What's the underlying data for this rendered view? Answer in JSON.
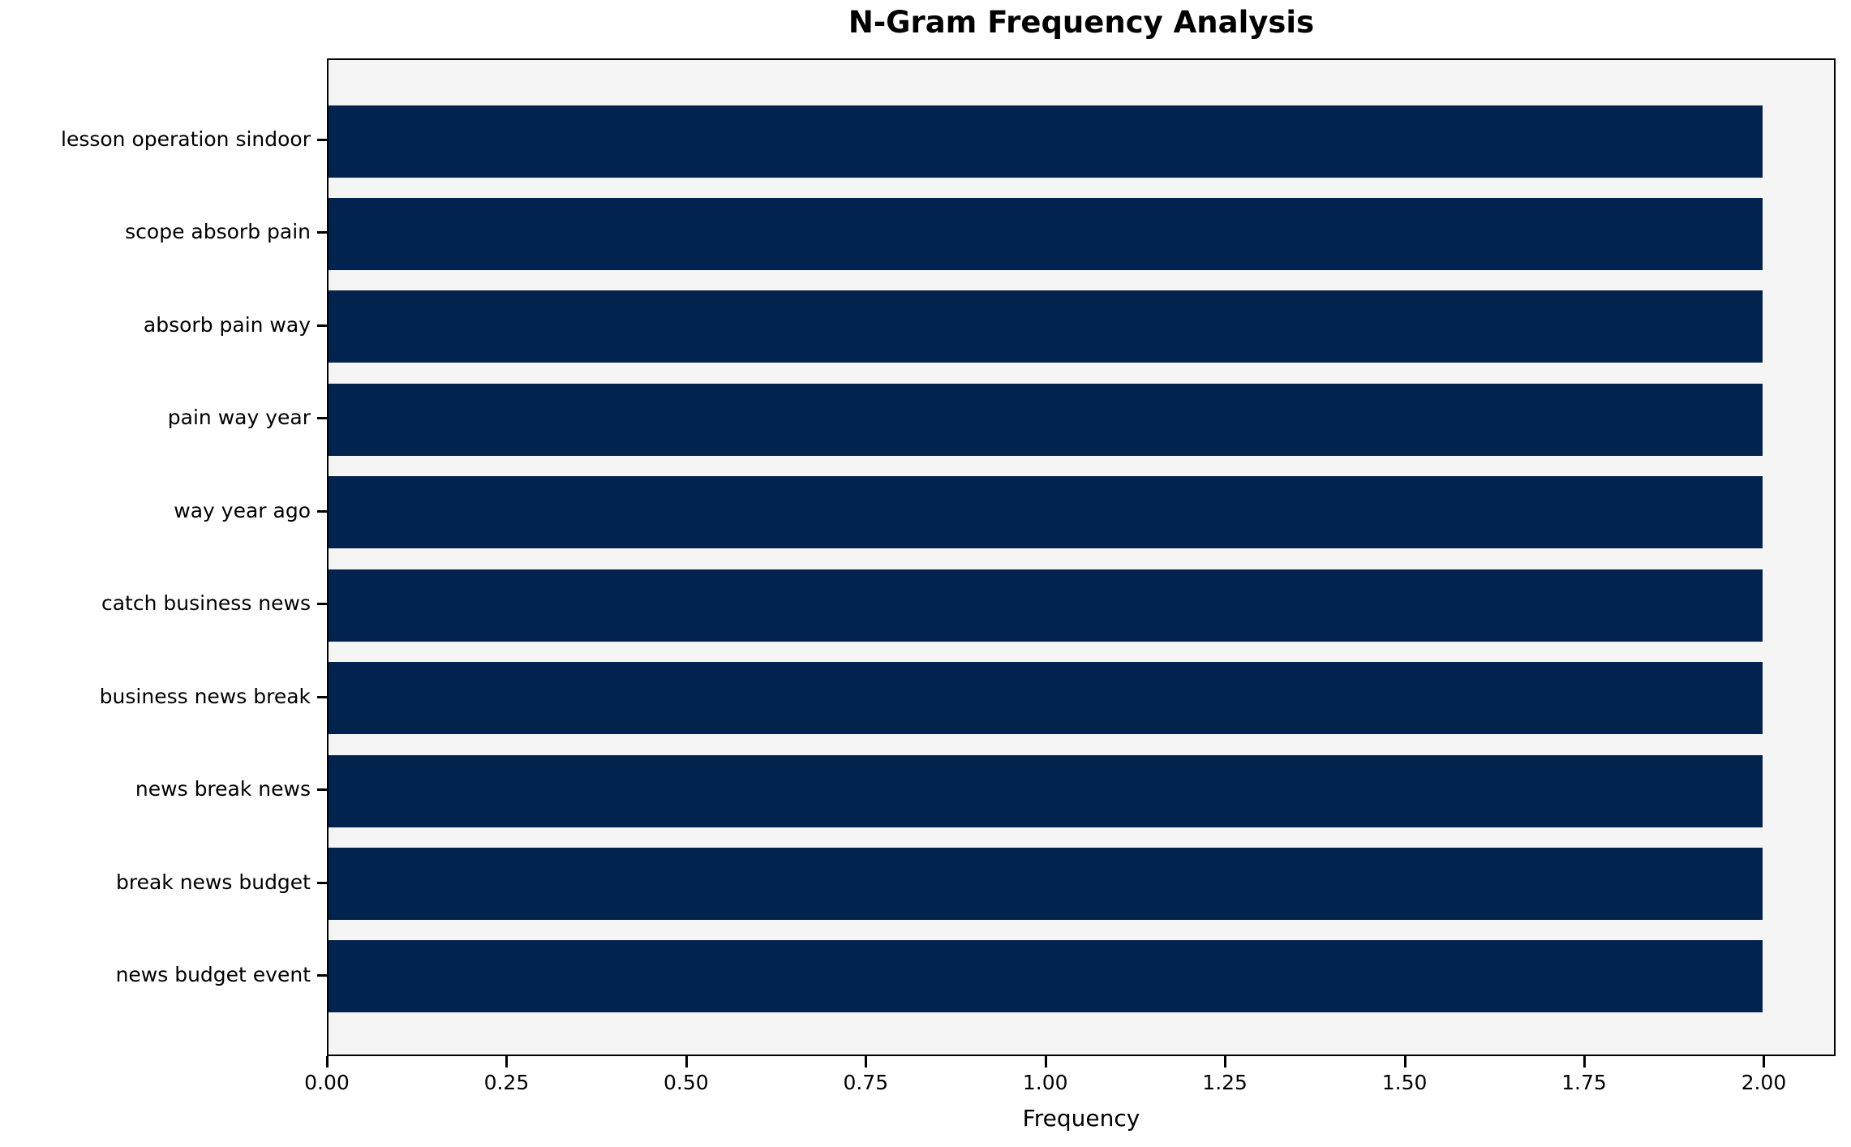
{
  "chart_data": {
    "type": "bar",
    "orientation": "horizontal",
    "title": "N-Gram Frequency Analysis",
    "xlabel": "Frequency",
    "ylabel": "",
    "categories": [
      "lesson operation sindoor",
      "scope absorb pain",
      "absorb pain way",
      "pain way year",
      "way year ago",
      "catch business news",
      "business news break",
      "news break news",
      "break news budget",
      "news budget event"
    ],
    "values": [
      2,
      2,
      2,
      2,
      2,
      2,
      2,
      2,
      2,
      2
    ],
    "xlim": [
      0,
      2.1
    ],
    "xticks": [
      "0.00",
      "0.25",
      "0.50",
      "0.75",
      "1.00",
      "1.25",
      "1.50",
      "1.75",
      "2.00"
    ],
    "xtick_values": [
      0,
      0.25,
      0.5,
      0.75,
      1.0,
      1.25,
      1.5,
      1.75,
      2.0
    ],
    "grid": false,
    "legend": null,
    "colors": {
      "bar_color": "#02234d",
      "plot_background": "#f5f5f5",
      "figure_background": "#ffffff",
      "axis_color": "#000000",
      "text_color": "#000000"
    }
  }
}
